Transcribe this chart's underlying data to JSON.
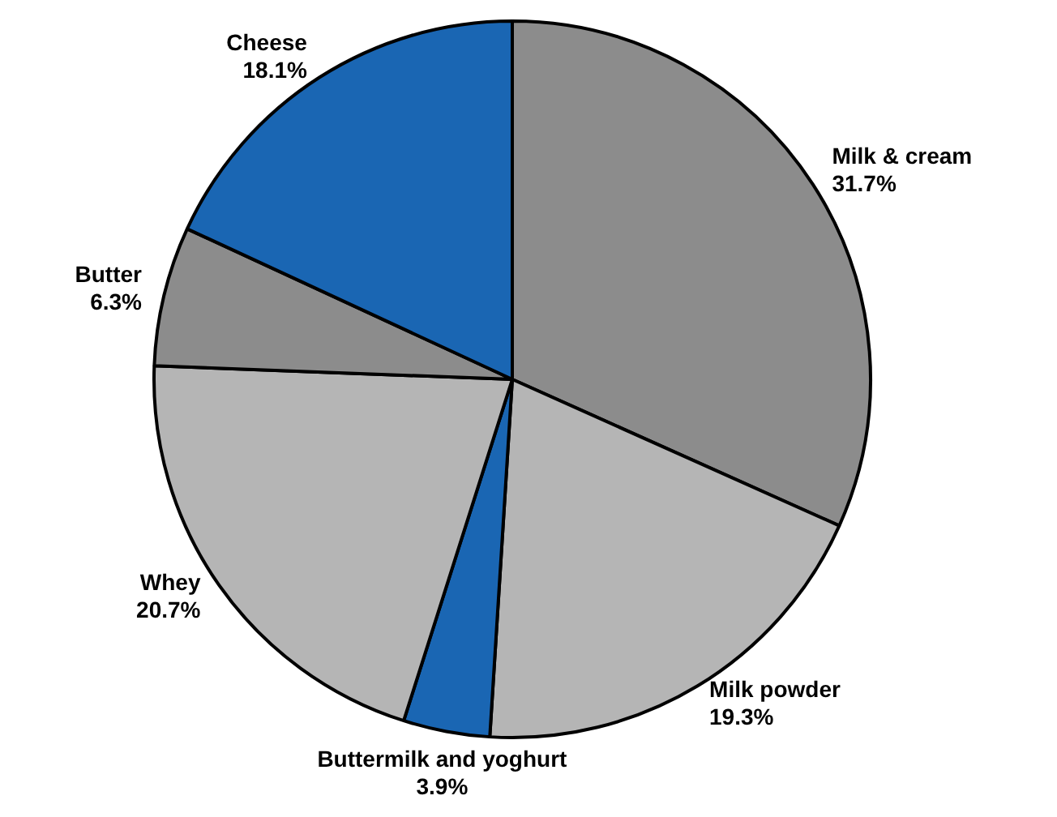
{
  "chart_data": {
    "type": "pie",
    "categories": [
      "Milk & cream",
      "Milk powder",
      "Buttermilk and yoghurt",
      "Whey",
      "Butter",
      "Cheese"
    ],
    "values": [
      31.7,
      19.3,
      3.9,
      20.7,
      6.3,
      18.1
    ],
    "value_labels": [
      "31.7%",
      "19.3%",
      "3.9%",
      "20.7%",
      "6.3%",
      "18.1%"
    ],
    "colors": [
      "#8c8c8c",
      "#b5b5b5",
      "#1a66b3",
      "#b5b5b5",
      "#8c8c8c",
      "#1a66b3"
    ],
    "legend": false
  }
}
